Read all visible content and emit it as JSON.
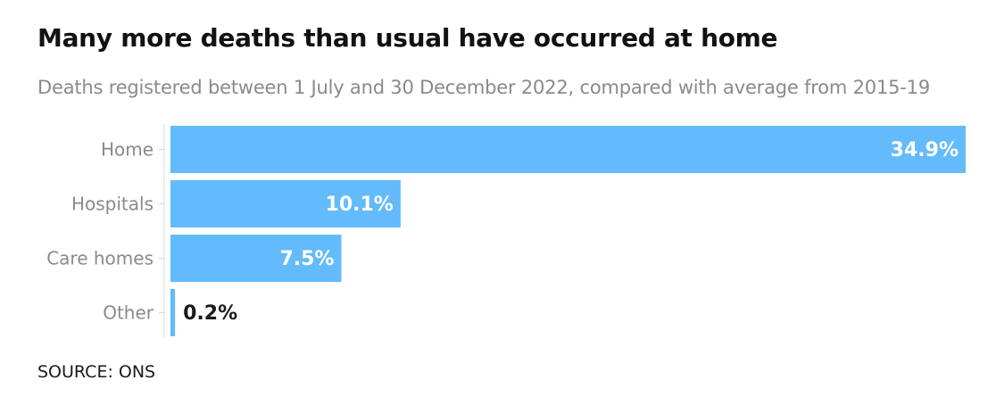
{
  "title": "Many more deaths than usual have occurred at home",
  "subtitle": "Deaths registered between 1 July and 30 December 2022, compared with average from 2015-19",
  "source": "SOURCE: ONS",
  "colors": {
    "bar": "#63bbfb",
    "label_inside": "#ffffff",
    "label_outside": "#1a1a1a"
  },
  "chart_data": {
    "type": "bar",
    "orientation": "horizontal",
    "title": "Many more deaths than usual have occurred at home",
    "subtitle": "Deaths registered between 1 July and 30 December 2022, compared with average from 2015-19",
    "categories": [
      "Home",
      "Hospitals",
      "Care homes",
      "Other"
    ],
    "values": [
      34.9,
      10.1,
      7.5,
      0.2
    ],
    "value_labels": [
      "34.9%",
      "10.1%",
      "7.5%",
      "0.2%"
    ],
    "xlim": [
      0,
      34.9
    ],
    "grid": false,
    "legend": "none"
  }
}
